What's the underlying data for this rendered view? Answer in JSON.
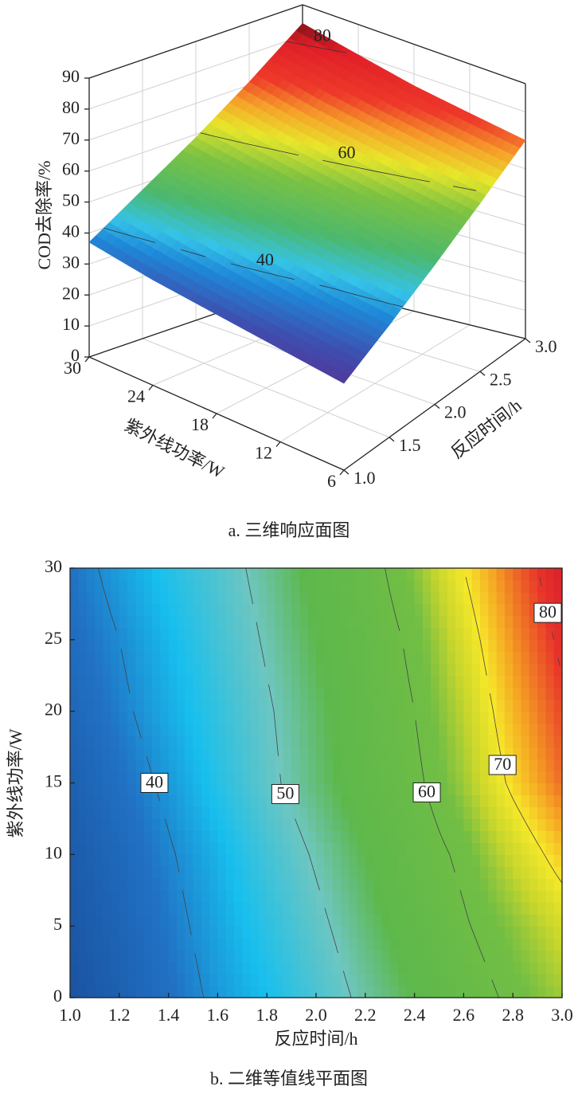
{
  "chart_data": [
    {
      "type": "surface3d",
      "x_label": "反应时间/h",
      "y_label": "紫外线功率/W",
      "z_label": "COD去除率/%",
      "x": [
        1,
        1.5,
        2,
        2.5,
        3
      ],
      "y": [
        6,
        12,
        18,
        24,
        30
      ],
      "z": [
        [
          28,
          37,
          47,
          58,
          70
        ],
        [
          30,
          39,
          50,
          61,
          73
        ],
        [
          32,
          42,
          53,
          64,
          76
        ],
        [
          34,
          45,
          56,
          67,
          80
        ],
        [
          37,
          48,
          59,
          71,
          84
        ]
      ],
      "xlim": [
        1,
        3
      ],
      "ylim": [
        6,
        30
      ],
      "zlim": [
        0,
        90
      ],
      "xticks": [
        {
          "value": 1,
          "label": "1.0"
        },
        1.5,
        {
          "value": 2,
          "label": "2.0"
        },
        2.5,
        {
          "value": 3,
          "label": "3.0"
        }
      ],
      "yticks": [
        6,
        12,
        18,
        24,
        30
      ],
      "zticks": [
        0,
        10,
        20,
        30,
        40,
        50,
        60,
        70,
        80,
        90
      ],
      "levels": [
        40,
        60,
        80
      ],
      "colorscale": [
        [
          25,
          "#5b2a8c"
        ],
        [
          32,
          "#3e4fb0"
        ],
        [
          38,
          "#1e88d8"
        ],
        [
          42,
          "#35c3e8"
        ],
        [
          48,
          "#4cb86c"
        ],
        [
          56,
          "#7cc242"
        ],
        [
          62,
          "#e8e62a"
        ],
        [
          67,
          "#f5a22a"
        ],
        [
          72,
          "#ee3a2a"
        ],
        [
          80,
          "#e01e28"
        ],
        [
          86,
          "#4a0c10"
        ]
      ],
      "caption": "a. 三维响应面图"
    },
    {
      "type": "contour",
      "x_label": "反应时间/h",
      "y_label": "紫外线功率/W",
      "x": [
        1,
        1.2,
        1.4,
        1.6,
        1.8,
        2,
        2.2,
        2.4,
        2.6,
        2.8,
        3
      ],
      "y": [
        0,
        5,
        10,
        15,
        20,
        25,
        30
      ],
      "z": [
        [
          31,
          34,
          37.5,
          41,
          44,
          47.5,
          51,
          54,
          57.5,
          61,
          64
        ],
        [
          32,
          35,
          38.5,
          42,
          45.5,
          49,
          52.5,
          56,
          59.5,
          63,
          67
        ],
        [
          33,
          36,
          39.5,
          43,
          47,
          50.5,
          54,
          57.5,
          61,
          66.5,
          72
        ],
        [
          34,
          37.5,
          41,
          45,
          49,
          52.5,
          56,
          59,
          64,
          71,
          77
        ],
        [
          35.5,
          39,
          42.5,
          46,
          49.5,
          53,
          56.5,
          60,
          65.5,
          73,
          79
        ],
        [
          37,
          40,
          43.5,
          47,
          50.5,
          54,
          57,
          61,
          67.5,
          75,
          81
        ],
        [
          38,
          41.5,
          45,
          48,
          51.5,
          55,
          58,
          63,
          70,
          77,
          83
        ]
      ],
      "xlim": [
        1,
        3
      ],
      "ylim": [
        0,
        30
      ],
      "xticks": [
        {
          "value": 1,
          "label": "1.0"
        },
        1.2,
        1.4,
        1.6,
        1.8,
        {
          "value": 2,
          "label": "2.0"
        },
        2.2,
        2.4,
        2.6,
        2.8,
        {
          "value": 3,
          "label": "3.0"
        }
      ],
      "yticks": [
        0,
        5,
        10,
        15,
        20,
        25,
        30
      ],
      "levels": [
        40,
        50,
        60,
        70,
        80
      ],
      "colorscale": [
        [
          30,
          "#1a4f9c"
        ],
        [
          38,
          "#2171c4"
        ],
        [
          44,
          "#17bfee"
        ],
        [
          50,
          "#6ec6c0"
        ],
        [
          54,
          "#5db84c"
        ],
        [
          62,
          "#72be44"
        ],
        [
          66,
          "#c8d62c"
        ],
        [
          70,
          "#f6e82a"
        ],
        [
          74,
          "#f5a623"
        ],
        [
          80,
          "#e8332a"
        ],
        [
          86,
          "#c8102a"
        ]
      ],
      "caption": "b. 二维等值线平面图"
    }
  ]
}
